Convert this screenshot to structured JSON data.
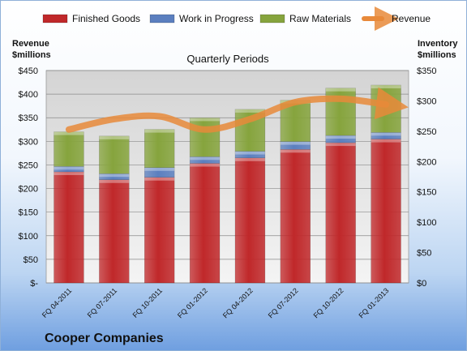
{
  "chart_data": {
    "type": "bar",
    "title": "Quarterly Periods",
    "company": "Cooper Companies",
    "ylabel_left": [
      "Revenue",
      "$millions"
    ],
    "ylabel_right": [
      "Inventory",
      "$millions"
    ],
    "categories": [
      "FQ 04-2011",
      "FQ 07-2011",
      "FQ 10-2011",
      "FQ 01-2012",
      "FQ 04-2012",
      "FQ 07-2012",
      "FQ 10-2012",
      "FQ 01-2013"
    ],
    "left_ticks": [
      "$-",
      "$50",
      "$100",
      "$150",
      "$200",
      "$250",
      "$300",
      "$350",
      "$400",
      "$450"
    ],
    "right_ticks": [
      "$0",
      "$50",
      "$100",
      "$150",
      "$200",
      "$250",
      "$300",
      "$350"
    ],
    "ylim_left": [
      0,
      450
    ],
    "ylim_right": [
      0,
      350
    ],
    "grid": true,
    "legend_position": "top",
    "series": [
      {
        "name": "Finished Goods",
        "axis": "right",
        "kind": "stacked-bar",
        "color": "#c0282a",
        "values": [
          183,
          170,
          174,
          197,
          206,
          220,
          231,
          237
        ]
      },
      {
        "name": "Work in Progress",
        "axis": "right",
        "kind": "stacked-bar",
        "color": "#5b7fbf",
        "values": [
          9,
          10,
          16,
          11,
          11,
          13,
          12,
          11
        ]
      },
      {
        "name": "Raw Materials",
        "axis": "right",
        "kind": "stacked-bar",
        "color": "#86a43d",
        "values": [
          57,
          62,
          63,
          64,
          69,
          68,
          78,
          78
        ]
      },
      {
        "name": "Revenue",
        "axis": "left",
        "kind": "line",
        "color": "#e8893a",
        "values": [
          325,
          347,
          353,
          325,
          347,
          383,
          390,
          378
        ]
      }
    ]
  }
}
